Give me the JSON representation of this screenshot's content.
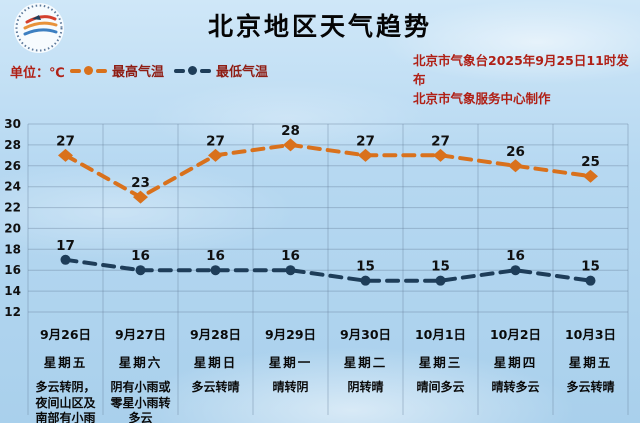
{
  "header": {
    "title": "北京地区天气趋势",
    "issue_line1": "北京市气象台2025年9月25日11时发布",
    "issue_line2": "北京市气象服务中心制作"
  },
  "legend": {
    "unit_label": "单位：℃",
    "max_label": "最高气温",
    "min_label": "最低气温"
  },
  "colors": {
    "max_line": "#d9711c",
    "min_line": "#1e3d59",
    "red_text": "#b02016",
    "legend_text": "#8f1d14",
    "grid": "#647e98"
  },
  "chart_data": {
    "type": "line",
    "title": "北京地区天气趋势",
    "ylabel": "℃",
    "ylim": [
      12,
      30
    ],
    "yticks": [
      30,
      28,
      26,
      24,
      22,
      20,
      18,
      16,
      14,
      12
    ],
    "grid": true,
    "legend_position": "top-left",
    "categories": [
      "9月26日",
      "9月27日",
      "9月28日",
      "9月29日",
      "9月30日",
      "10月1日",
      "10月2日",
      "10月3日"
    ],
    "weekdays": [
      "星期五",
      "星期六",
      "星期日",
      "星期一",
      "星期二",
      "星期三",
      "星期四",
      "星期五"
    ],
    "conditions": [
      "多云转阴，夜间山区及南部有小雨",
      "阴有小雨或零星小雨转多云",
      "多云转晴",
      "晴转阴",
      "阴转晴",
      "晴间多云",
      "晴转多云",
      "多云转晴"
    ],
    "series": [
      {
        "name": "最高气温",
        "values": [
          27,
          23,
          27,
          28,
          27,
          27,
          26,
          25
        ],
        "color": "#d9711c",
        "marker": "diamond",
        "style": "dashed"
      },
      {
        "name": "最低气温",
        "values": [
          17,
          16,
          16,
          16,
          15,
          15,
          16,
          15
        ],
        "color": "#1e3d59",
        "marker": "circle",
        "style": "dashed"
      }
    ]
  }
}
